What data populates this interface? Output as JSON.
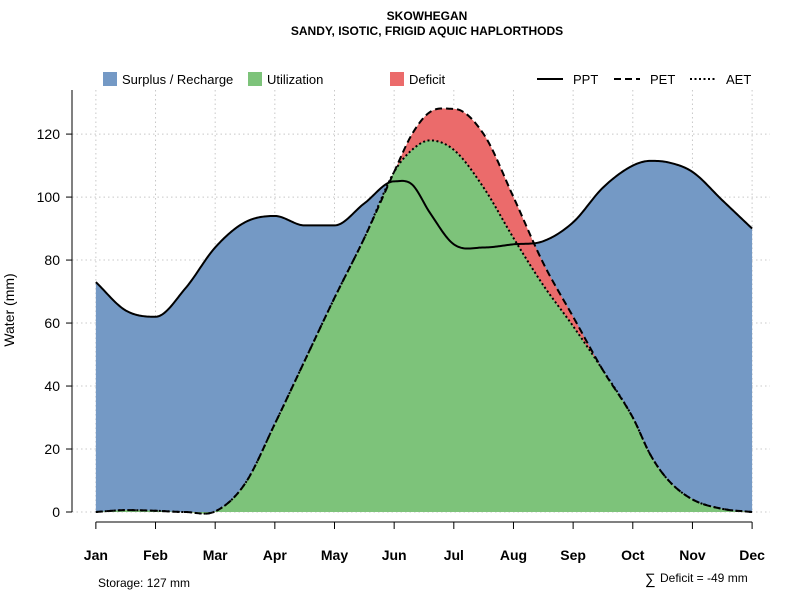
{
  "chart_data": {
    "type": "area",
    "title": "SKOWHEGAN",
    "subtitle": "SANDY, ISOTIC, FRIGID AQUIC HAPLORTHODS",
    "ylabel": "Water (mm)",
    "xlabel": "",
    "ylim": [
      0,
      134
    ],
    "yticks": [
      0,
      20,
      40,
      60,
      80,
      100,
      120
    ],
    "categories": [
      "Jan",
      "Feb",
      "Mar",
      "Apr",
      "May",
      "Jun",
      "Jul",
      "Aug",
      "Sep",
      "Oct",
      "Nov",
      "Dec"
    ],
    "x": [
      1,
      1.5,
      2,
      2.5,
      3,
      3.5,
      4,
      4.5,
      5,
      5.5,
      6,
      6.3,
      6.6,
      7,
      7.5,
      8,
      8.5,
      9,
      9.5,
      10,
      10.3,
      10.6,
      11,
      11.5,
      12
    ],
    "series": [
      {
        "name": "PPT",
        "values": [
          73,
          64,
          62,
          71,
          84,
          92,
          94,
          91,
          91,
          98,
          105,
          104,
          95,
          85,
          84,
          85,
          86,
          92,
          103,
          110,
          111.5,
          111,
          108,
          99,
          90
        ]
      },
      {
        "name": "PET",
        "values": [
          0,
          0.6,
          0.4,
          0,
          0.2,
          9,
          28,
          48,
          68,
          87,
          108,
          120,
          127,
          128,
          120,
          100,
          79,
          62,
          45,
          30,
          18,
          10,
          4,
          1,
          0
        ]
      },
      {
        "name": "AET",
        "values": [
          0,
          0.6,
          0.4,
          0,
          0.2,
          9,
          28,
          48,
          68,
          87,
          108,
          115,
          118,
          115,
          103,
          87,
          72,
          59,
          45,
          30,
          18,
          10,
          4,
          1,
          0
        ]
      }
    ],
    "legend": [
      {
        "label": "Surplus / Recharge",
        "type": "patch",
        "color": "#7499c5"
      },
      {
        "label": "Utilization",
        "type": "patch",
        "color": "#7dc37a"
      },
      {
        "label": "Deficit",
        "type": "patch",
        "color": "#eb6b6b"
      },
      {
        "label": "PPT",
        "type": "line",
        "dash": "solid"
      },
      {
        "label": "PET",
        "type": "line",
        "dash": "dashed"
      },
      {
        "label": "AET",
        "type": "line",
        "dash": "dotted"
      }
    ],
    "legend_position": "top",
    "grid": true,
    "annotations": {
      "storage": "Storage: 127 mm",
      "deficit_symbol": "∑",
      "deficit": "Deficit = -49 mm"
    }
  }
}
